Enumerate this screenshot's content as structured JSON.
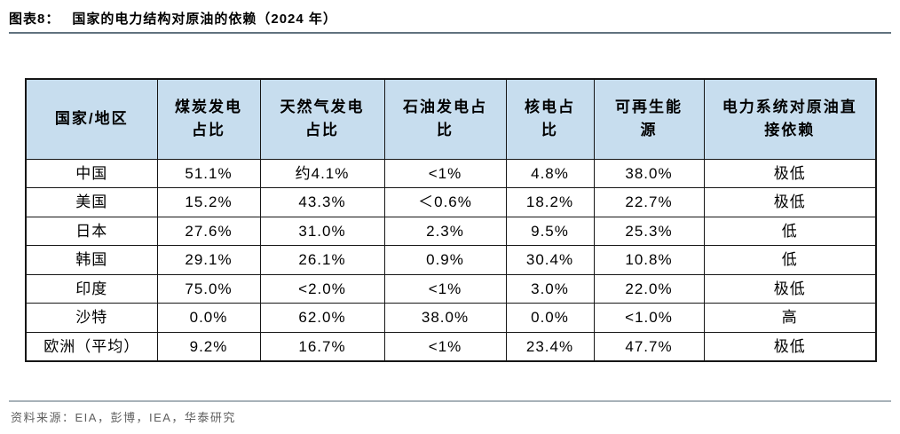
{
  "header": {
    "figure_label": "图表8：",
    "title": "国家的电力结构对原油的依赖（2024 年）"
  },
  "chart_data": {
    "type": "table",
    "title": "国家的电力结构对原油的依赖（2024 年）",
    "columns": [
      "国家/地区",
      "煤炭发电占比",
      "天然气发电占比",
      "石油发电占比",
      "核电占比",
      "可再生能源",
      "电力系统对原油直接依赖"
    ],
    "columns_display": [
      "国家/地区",
      "煤炭发电\n占比",
      "天然气发电\n占比",
      "石油发电占\n比",
      "核电占\n比",
      "可再生能\n源",
      "电力系统对原油直\n接依赖"
    ],
    "rows": [
      [
        "中国",
        "51.1%",
        "约4.1%",
        "<1%",
        "4.8%",
        "38.0%",
        "极低"
      ],
      [
        "美国",
        "15.2%",
        "43.3%",
        "＜0.6%",
        "18.2%",
        "22.7%",
        "极低"
      ],
      [
        "日本",
        "27.6%",
        "31.0%",
        "2.3%",
        "9.5%",
        "25.3%",
        "低"
      ],
      [
        "韩国",
        "29.1%",
        "26.1%",
        "0.9%",
        "30.4%",
        "10.8%",
        "低"
      ],
      [
        "印度",
        "75.0%",
        "<2.0%",
        "<1%",
        "3.0%",
        "22.0%",
        "极低"
      ],
      [
        "沙特",
        "0.0%",
        "62.0%",
        "38.0%",
        "0.0%",
        "<1.0%",
        "高"
      ],
      [
        "欧洲（平均）",
        "9.2%",
        "16.7%",
        "<1%",
        "23.4%",
        "47.7%",
        "极低"
      ]
    ]
  },
  "footer": {
    "source": "资料来源：EIA，彭博，IEA，华泰研究"
  },
  "colors": {
    "header_bg": "#c7ddee",
    "table_border": "#161616",
    "title_rule": "#61727f",
    "footer_rule": "#a8b2b9",
    "footer_text": "#5f5f5f",
    "text": "#000000"
  }
}
